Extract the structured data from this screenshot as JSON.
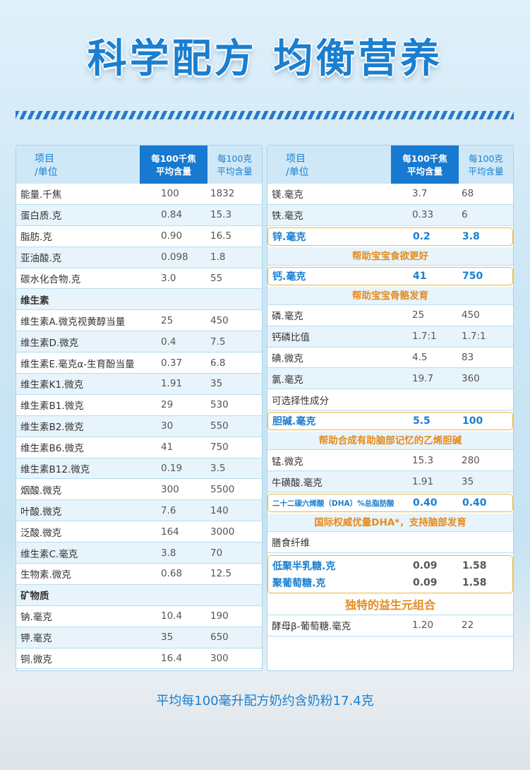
{
  "title": "科学配方 均衡营养",
  "header": {
    "item": "项目",
    "unit": "/单位",
    "col1_l1": "每100千焦",
    "col1_l2": "平均含量",
    "col2_l1": "每100克",
    "col2_l2": "平均含量"
  },
  "left_rows": [
    {
      "name": "能量.千焦",
      "v1": "100",
      "v2": "1832"
    },
    {
      "name": "蛋白质.克",
      "v1": "0.84",
      "v2": "15.3"
    },
    {
      "name": "脂肪.克",
      "v1": "0.90",
      "v2": "16.5"
    },
    {
      "name": "亚油酸.克",
      "v1": "0.098",
      "v2": "1.8"
    },
    {
      "name": "碳水化合物.克",
      "v1": "3.0",
      "v2": "55"
    },
    {
      "name": "维生素",
      "v1": "",
      "v2": "",
      "section": true
    },
    {
      "name": "维生素A.微克视黄醇当量",
      "v1": "25",
      "v2": "450"
    },
    {
      "name": "维生素D.微克",
      "v1": "0.4",
      "v2": "7.5"
    },
    {
      "name": "维生素E.毫克α-生育酚当量",
      "v1": "0.37",
      "v2": "6.8"
    },
    {
      "name": "维生素K1.微克",
      "v1": "1.91",
      "v2": "35"
    },
    {
      "name": "维生素B1.微克",
      "v1": "29",
      "v2": "530"
    },
    {
      "name": "维生素B2.微克",
      "v1": "30",
      "v2": "550"
    },
    {
      "name": "维生素B6.微克",
      "v1": "41",
      "v2": "750"
    },
    {
      "name": "维生素B12.微克",
      "v1": "0.19",
      "v2": "3.5"
    },
    {
      "name": "烟酸.微克",
      "v1": "300",
      "v2": "5500"
    },
    {
      "name": "叶酸.微克",
      "v1": "7.6",
      "v2": "140"
    },
    {
      "name": "泛酸.微克",
      "v1": "164",
      "v2": "3000"
    },
    {
      "name": "维生素C.毫克",
      "v1": "3.8",
      "v2": "70"
    },
    {
      "name": "生物素.微克",
      "v1": "0.68",
      "v2": "12.5"
    },
    {
      "name": "矿物质",
      "v1": "",
      "v2": "",
      "section": true
    },
    {
      "name": "钠.毫克",
      "v1": "10.4",
      "v2": "190"
    },
    {
      "name": "钾.毫克",
      "v1": "35",
      "v2": "650"
    },
    {
      "name": "铜.微克",
      "v1": "16.4",
      "v2": "300"
    }
  ],
  "right": {
    "mg": {
      "name": "镁.毫克",
      "v1": "3.7",
      "v2": "68"
    },
    "fe": {
      "name": "铁.毫克",
      "v1": "0.33",
      "v2": "6"
    },
    "zn": {
      "name": "锌.毫克",
      "v1": "0.2",
      "v2": "3.8"
    },
    "zn_note": "帮助宝宝食欲更好",
    "ca": {
      "name": "钙.毫克",
      "v1": "41",
      "v2": "750"
    },
    "ca_note": "帮助宝宝骨骼发育",
    "p": {
      "name": "磷.毫克",
      "v1": "25",
      "v2": "450"
    },
    "cap": {
      "name": "钙磷比值",
      "v1": "1.7:1",
      "v2": "1.7:1"
    },
    "i": {
      "name": "碘.微克",
      "v1": "4.5",
      "v2": "83"
    },
    "cl": {
      "name": "氯.毫克",
      "v1": "19.7",
      "v2": "360"
    },
    "opt": "可选择性成分",
    "choline": {
      "name": "胆碱.毫克",
      "v1": "5.5",
      "v2": "100"
    },
    "choline_note": "帮助合成有助脑部记忆的乙烯胆碱",
    "mn": {
      "name": "锰.微克",
      "v1": "15.3",
      "v2": "280"
    },
    "taurine": {
      "name": "牛磺酸.毫克",
      "v1": "1.91",
      "v2": "35"
    },
    "dha": {
      "name": "二十二碳六烯酸（DHA）%总脂肪酸",
      "v1": "0.40",
      "v2": "0.40"
    },
    "dha_note": "国际权威优量DHA*，支持脑部发育",
    "fiber": "膳食纤维",
    "gos": {
      "name": "低聚半乳糖.克",
      "v1": "0.09",
      "v2": "1.58"
    },
    "pdx": {
      "name": "聚葡萄糖.克",
      "v1": "0.09",
      "v2": "1.58"
    },
    "prebiotic_note": "独特的益生元组合",
    "glucan": {
      "name": "酵母β-葡萄糖.毫克",
      "v1": "1.20",
      "v2": "22"
    }
  },
  "footer": "平均每100毫升配方奶约含奶粉17.4克"
}
